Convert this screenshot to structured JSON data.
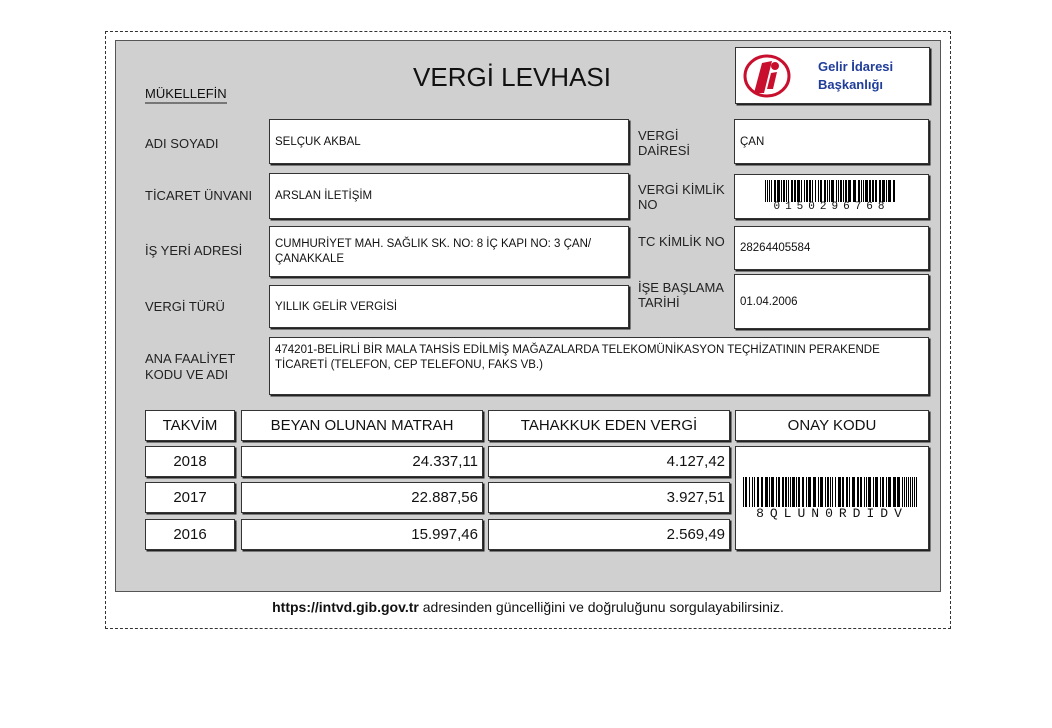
{
  "title": "VERGİ LEVHASI",
  "section_label": "MÜKELLEFİN",
  "logo": {
    "text_line1": "Gelir İdaresi",
    "text_line2": "Başkanlığı",
    "icon": "gib-logo-icon",
    "color": "#c8102e",
    "text_color": "#1f3d99"
  },
  "fields": {
    "adi_soyadi": {
      "label": "ADI SOYADI",
      "value": "SELÇUK AKBAL"
    },
    "ticaret_unvani": {
      "label": "TİCARET ÜNVANI",
      "value": "ARSLAN İLETİŞİM"
    },
    "is_yeri_adresi": {
      "label": "İŞ YERİ ADRESİ",
      "value": "CUMHURİYET MAH. SAĞLIK SK. NO: 8 İÇ KAPI NO: 3 ÇAN/ ÇANAKKALE"
    },
    "vergi_turu": {
      "label": "VERGİ TÜRÜ",
      "value": "YILLIK GELİR VERGİSİ"
    },
    "vergi_dairesi": {
      "label": "VERGİ DAİRESİ",
      "value": "ÇAN"
    },
    "vergi_kimlik_no": {
      "label": "VERGİ KİMLİK NO",
      "value": "0150296768"
    },
    "tc_kimlik_no": {
      "label": "TC KİMLİK NO",
      "value": "28264405584"
    },
    "ise_baslama_tarihi": {
      "label": "İŞE BAŞLAMA TARİHİ",
      "value": "01.04.2006"
    },
    "ana_faaliyet": {
      "label": "ANA FAALİYET KODU VE ADI",
      "value": "474201-BELİRLİ BİR MALA TAHSİS EDİLMİŞ MAĞAZALARDA TELEKOMÜNİKASYON TEÇHİZATININ PERAKENDE TİCARETİ (TELEFON, CEP TELEFONU, FAKS VB.)"
    }
  },
  "table": {
    "headers": [
      "TAKVİM",
      "BEYAN OLUNAN MATRAH",
      "TAHAKKUK EDEN VERGİ",
      "ONAY KODU"
    ],
    "rows": [
      {
        "year": "2018",
        "matrah": "24.337,11",
        "vergi": "4.127,42"
      },
      {
        "year": "2017",
        "matrah": "22.887,56",
        "vergi": "3.927,51"
      },
      {
        "year": "2016",
        "matrah": "15.997,46",
        "vergi": "2.569,49"
      }
    ],
    "onay_kodu": "8QLUN0RDIDV"
  },
  "footer": {
    "link": "https://intvd.gib.gov.tr",
    "text": " adresinden güncelliğini ve doğruluğunu sorgulayabilirsiniz."
  }
}
